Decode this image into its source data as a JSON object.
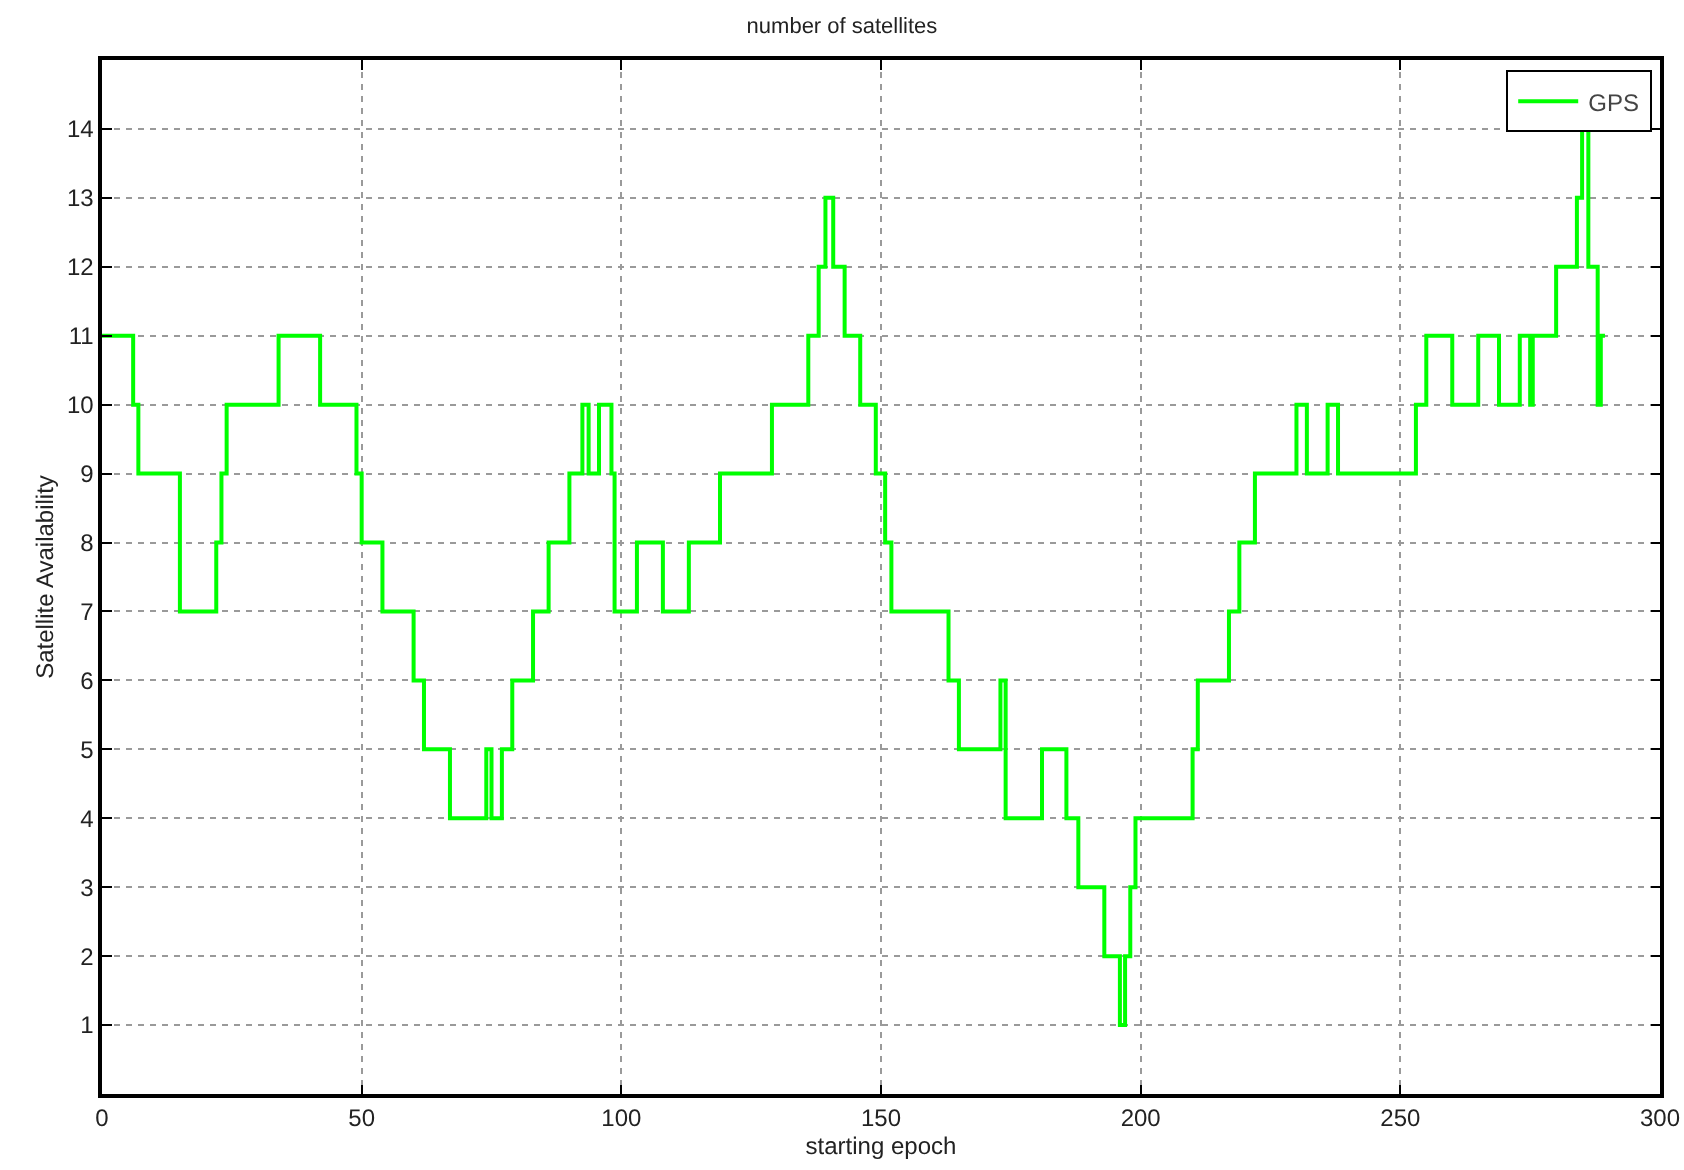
{
  "chart_data": {
    "type": "step",
    "title": "number of satellites",
    "xlabel": "starting epoch",
    "ylabel": "Satellite Availability",
    "series": [
      {
        "name": "GPS",
        "color": "#00ff00",
        "x": [
          0,
          6,
          7,
          15,
          22,
          23,
          24,
          34,
          42,
          49,
          50,
          54,
          60,
          62,
          67,
          74,
          75,
          77,
          79,
          83,
          86,
          90,
          92.5,
          93.7,
          95.7,
          98.1,
          98.7,
          103,
          108,
          113,
          119,
          129,
          136,
          138,
          139.3,
          140.8,
          143,
          146,
          149,
          150.8,
          152,
          163,
          165,
          173,
          174,
          181,
          185.7,
          188,
          193,
          196,
          197,
          198,
          199,
          210,
          211,
          217,
          219,
          222,
          230,
          232,
          236,
          238,
          253,
          255,
          260,
          265,
          269,
          273,
          275,
          275.5,
          280,
          284,
          285,
          286.2,
          288,
          288.6,
          289.4
        ],
        "values": [
          11,
          10,
          9,
          7,
          8,
          9,
          10,
          11,
          10,
          9,
          8,
          7,
          6,
          5,
          4,
          5,
          4,
          5,
          6,
          7,
          8,
          9,
          10,
          9,
          10,
          9,
          7,
          8,
          7,
          8,
          9,
          10,
          11,
          12,
          13,
          12,
          11,
          10,
          9,
          8,
          7,
          6,
          5,
          6,
          4,
          5,
          4,
          3,
          2,
          1,
          2,
          3,
          4,
          5,
          6,
          7,
          8,
          9,
          10,
          9,
          10,
          9,
          10,
          11,
          10,
          11,
          10,
          11,
          10,
          11,
          12,
          13,
          14,
          12,
          10,
          11,
          11
        ]
      }
    ],
    "xlim": [
      0,
      300
    ],
    "xticks": [
      0,
      50,
      100,
      150,
      200,
      250,
      300
    ],
    "ylim": [
      0,
      15
    ],
    "yticks": [
      1,
      2,
      3,
      4,
      5,
      6,
      7,
      8,
      9,
      10,
      11,
      12,
      13,
      14
    ],
    "grid": true,
    "legend": "top right",
    "line_style": "solid",
    "marker": "none"
  }
}
